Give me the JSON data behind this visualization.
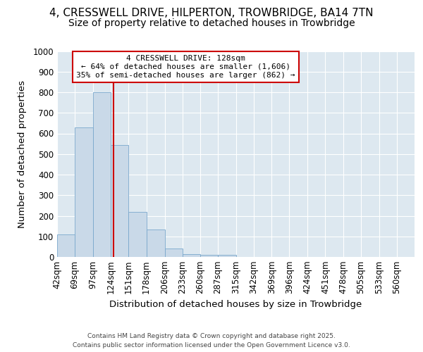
{
  "title_line1": "4, CRESSWELL DRIVE, HILPERTON, TROWBRIDGE, BA14 7TN",
  "title_line2": "Size of property relative to detached houses in Trowbridge",
  "xlabel": "Distribution of detached houses by size in Trowbridge",
  "ylabel": "Number of detached properties",
  "bin_edges": [
    42,
    69,
    97,
    124,
    151,
    178,
    206,
    233,
    260,
    287,
    315,
    342,
    369,
    396,
    424,
    451,
    478,
    505,
    533,
    560,
    587
  ],
  "bar_heights": [
    110,
    630,
    800,
    545,
    220,
    135,
    40,
    15,
    10,
    10,
    0,
    0,
    0,
    0,
    0,
    0,
    0,
    0,
    0,
    0
  ],
  "bar_color": "#c9d9e8",
  "bar_edge_color": "#7aa8cc",
  "vline_x": 128,
  "vline_color": "#cc0000",
  "annotation_text": "4 CRESSWELL DRIVE: 128sqm\n← 64% of detached houses are smaller (1,606)\n35% of semi-detached houses are larger (862) →",
  "annotation_box_color": "#ffffff",
  "annotation_box_edge": "#cc0000",
  "ylim": [
    0,
    1000
  ],
  "yticks": [
    0,
    100,
    200,
    300,
    400,
    500,
    600,
    700,
    800,
    900,
    1000
  ],
  "background_color": "#dde8f0",
  "fig_background_color": "#ffffff",
  "footer_line1": "Contains HM Land Registry data © Crown copyright and database right 2025.",
  "footer_line2": "Contains public sector information licensed under the Open Government Licence v3.0.",
  "grid_color": "#ffffff",
  "title_fontsize": 11,
  "subtitle_fontsize": 10,
  "axis_label_fontsize": 9.5,
  "tick_fontsize": 8.5
}
